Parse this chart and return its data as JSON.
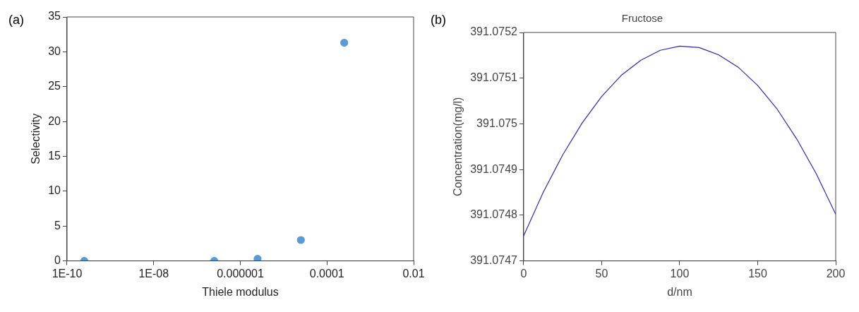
{
  "chart_data": [
    {
      "type": "scatter",
      "annotations": [
        "(a)"
      ],
      "xlabel": "Thiele modulus",
      "ylabel": "Selectivity",
      "log": "x",
      "grid": false,
      "marker": "circle",
      "x": [
        2.5e-10,
        2.5e-07,
        2.5e-06,
        2.5e-05,
        0.00025
      ],
      "series": [
        {
          "color": "#5b9bd5",
          "values": [
            0,
            0,
            0.3,
            3.0,
            31.3
          ]
        }
      ],
      "xlim": [
        1e-10,
        0.01
      ],
      "xticks": [
        {
          "value": 1e-10,
          "label": "1E-10"
        },
        {
          "value": 1e-08,
          "label": "1E-08"
        },
        {
          "value": 1e-06,
          "label": "0.000001"
        },
        {
          "value": 0.0001,
          "label": "0.0001"
        },
        {
          "value": 0.01,
          "label": "0.01"
        }
      ],
      "ylim": [
        0,
        35
      ],
      "yticks": [
        0,
        5,
        10,
        15,
        20,
        25,
        30,
        35
      ]
    },
    {
      "type": "line",
      "annotations": [
        "(b)"
      ],
      "title": "Fructose",
      "xlabel": "d/nm",
      "ylabel": "Concentration(mg/l)",
      "grid": false,
      "marker": "none",
      "x": [
        0,
        12.5,
        25,
        37.5,
        50,
        62.5,
        75,
        87.5,
        100,
        112.5,
        125,
        137.5,
        150,
        162.5,
        175,
        187.5,
        200
      ],
      "series": [
        {
          "color": "#2a2ab0",
          "values": [
            391.074755,
            391.07485,
            391.074932,
            391.075002,
            391.07506,
            391.075106,
            391.075139,
            391.075161,
            391.07517,
            391.075167,
            391.075151,
            391.075124,
            391.075084,
            391.075032,
            391.074967,
            391.074891,
            391.074802
          ]
        }
      ],
      "xlim": [
        0,
        200
      ],
      "xticks": [
        0,
        50,
        100,
        150,
        200
      ],
      "ylim": [
        391.0747,
        391.0752
      ],
      "yticks": [
        391.0747,
        391.0748,
        391.0749,
        391.075,
        391.0751,
        391.0752
      ]
    }
  ]
}
